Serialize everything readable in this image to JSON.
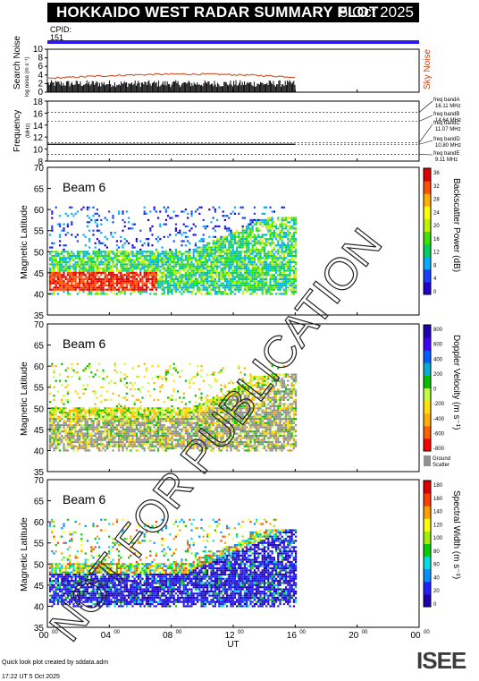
{
  "header": {
    "title": "HOKKAIDO WEST RADAR SUMMARY PLOT",
    "date": "5 Oct 2025"
  },
  "cpid": {
    "label": "CPID:",
    "value": "151"
  },
  "noise_panel": {
    "ylabel": "Search Noise",
    "ylabel_sub": "log noise (m s⁻¹)",
    "yticks": [
      "10",
      "8",
      "6",
      "4",
      "2",
      "0"
    ],
    "side_label": "Sky Noise"
  },
  "freq_panel": {
    "ylabel": "Frequency",
    "ylabel_sub": "(MHz)",
    "yticks": [
      "18",
      "16",
      "14",
      "12",
      "10",
      "8"
    ],
    "bands": [
      {
        "name": "freq bandA",
        "value": "16.11 MHz"
      },
      {
        "name": "freq bandB",
        "value": "14.64 MHz"
      },
      {
        "name": "freq bandC",
        "value": "11.07 MHz"
      },
      {
        "name": "freq bandD",
        "value": "10.80 MHz"
      },
      {
        "name": "freq bandE",
        "value": "9.11 MHz"
      }
    ]
  },
  "panels": [
    {
      "beam": "Beam  6",
      "ylabel": "Magnetic Latitude",
      "yticks": [
        "70",
        "65",
        "60",
        "55",
        "50",
        "45",
        "40",
        "35"
      ],
      "cbar_label": "Backscatter Power (dB)",
      "cbar_ticks": [
        "36",
        "32",
        "28",
        "24",
        "20",
        "16",
        "12",
        "8",
        "4",
        "0"
      ]
    },
    {
      "beam": "Beam  6",
      "ylabel": "Magnetic Latitude",
      "yticks": [
        "70",
        "65",
        "60",
        "55",
        "50",
        "45",
        "40",
        "35"
      ],
      "cbar_label": "Doppler Velocity (m s⁻¹)",
      "cbar_ticks": [
        "800",
        "600",
        "400",
        "200",
        "0",
        "-200",
        "-400",
        "-600",
        "-800"
      ],
      "ground_label": "Ground",
      "ground_label2": "Scatter"
    },
    {
      "beam": "Beam  6",
      "ylabel": "Magnetic Latitude",
      "yticks": [
        "70",
        "65",
        "60",
        "55",
        "50",
        "45",
        "40",
        "35"
      ],
      "cbar_label": "Spectral Width (m s⁻¹)",
      "cbar_ticks": [
        "180",
        "160",
        "140",
        "120",
        "100",
        "80",
        "60",
        "40",
        "20",
        "0"
      ]
    }
  ],
  "xaxis": {
    "ticks": [
      "00",
      "04",
      "08",
      "12",
      "16",
      "20",
      "00"
    ],
    "tick_sup": "00",
    "label": "UT"
  },
  "footer": {
    "line1": "Quick look plot created by sddata.adm",
    "line2": "17:22 UT  5 Oct 2025"
  },
  "logo": {
    "text": "ISEE"
  },
  "watermark": "NOT FOR PUBLICATION",
  "colors": {
    "power_scale": [
      "#2200d0",
      "#1a40ff",
      "#00b0ff",
      "#00d060",
      "#40e000",
      "#c0f000",
      "#ffff00",
      "#ffb000",
      "#ff5000",
      "#e00000"
    ],
    "velocity_scale": [
      "#ff0000",
      "#ff6000",
      "#ffb000",
      "#ffe000",
      "#c0ff40",
      "#00c000",
      "#00b0d0",
      "#0060ff",
      "#4000ff",
      "#2000b0"
    ],
    "width_scale": [
      "#2000b0",
      "#2020ff",
      "#0090ff",
      "#00e0e0",
      "#00d000",
      "#a0f000",
      "#ffff00",
      "#ffa000",
      "#ff4000",
      "#e00000"
    ],
    "ground_scatter": "#909090",
    "cpid_bar": "#2a1af0",
    "sky_noise": "#d04010"
  },
  "chart_data": [
    {
      "type": "bar",
      "title": "Search Noise",
      "ylim": [
        0,
        10
      ],
      "xlim_hours": [
        0,
        24
      ],
      "description_series": [
        {
          "name": "Sky Noise",
          "values": [
            3.2,
            3.5,
            3.8,
            4.0,
            4.2,
            4.0,
            3.8,
            3.6
          ]
        }
      ],
      "x": [
        0,
        2,
        4,
        6,
        8,
        10,
        12,
        14
      ],
      "data_end_hours": 16
    },
    {
      "type": "line",
      "title": "Frequency",
      "ylim": [
        8,
        18
      ],
      "series": [
        {
          "name": "freq bandD",
          "x": [
            0,
            16
          ],
          "y": [
            10.8,
            10.8
          ]
        }
      ]
    },
    {
      "type": "heatmap",
      "title": "Beam 6 Backscatter Power",
      "ylim": [
        35,
        70
      ],
      "xlim_hours": [
        0,
        24
      ],
      "zlim": [
        0,
        40
      ]
    },
    {
      "type": "heatmap",
      "title": "Beam 6 Doppler Velocity",
      "ylim": [
        35,
        70
      ],
      "xlim_hours": [
        0,
        24
      ],
      "zlim": [
        -1000,
        1000
      ]
    },
    {
      "type": "heatmap",
      "title": "Beam 6 Spectral Width",
      "ylim": [
        35,
        70
      ],
      "xlim_hours": [
        0,
        24
      ],
      "zlim": [
        0,
        200
      ]
    }
  ]
}
